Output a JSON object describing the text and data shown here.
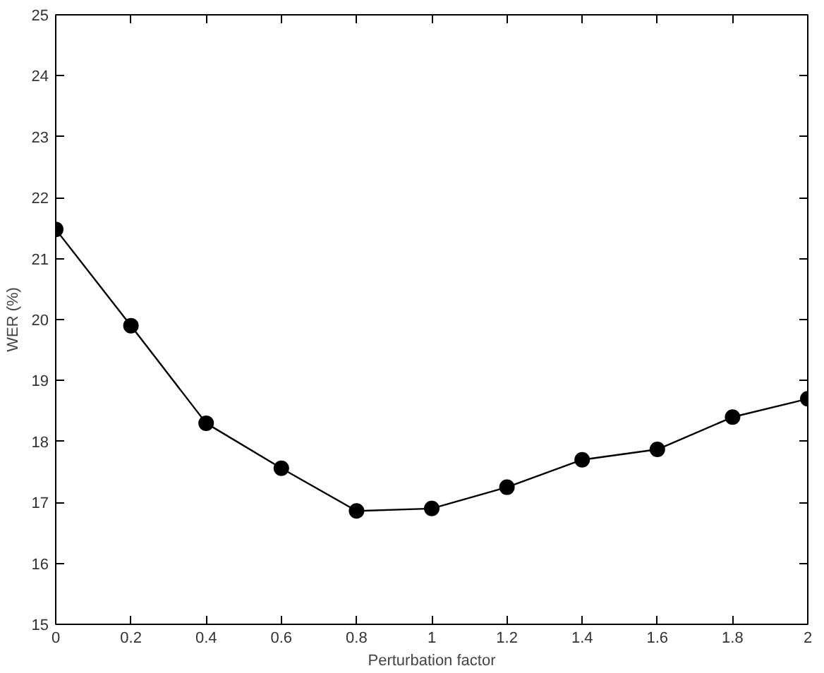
{
  "chart_data": {
    "type": "line",
    "xlabel": "Perturbation factor",
    "ylabel": "WER (%)",
    "x": [
      0,
      0.2,
      0.4,
      0.6,
      0.8,
      1,
      1.2,
      1.4,
      1.6,
      1.8,
      2
    ],
    "series": [
      {
        "color": "#000000",
        "values": [
          21.48,
          19.9,
          18.3,
          17.56,
          16.86,
          16.9,
          17.25,
          17.7,
          17.87,
          18.4,
          18.7
        ]
      }
    ],
    "xlim": [
      0,
      2
    ],
    "ylim": [
      15,
      25
    ],
    "xticks": [
      0,
      0.2,
      0.4,
      0.6,
      0.8,
      1,
      1.2,
      1.4,
      1.6,
      1.8,
      2
    ],
    "yticks": [
      15,
      16,
      17,
      18,
      19,
      20,
      21,
      22,
      23,
      24,
      25
    ],
    "grid": false,
    "marker": "circle",
    "line_style": "solid"
  }
}
